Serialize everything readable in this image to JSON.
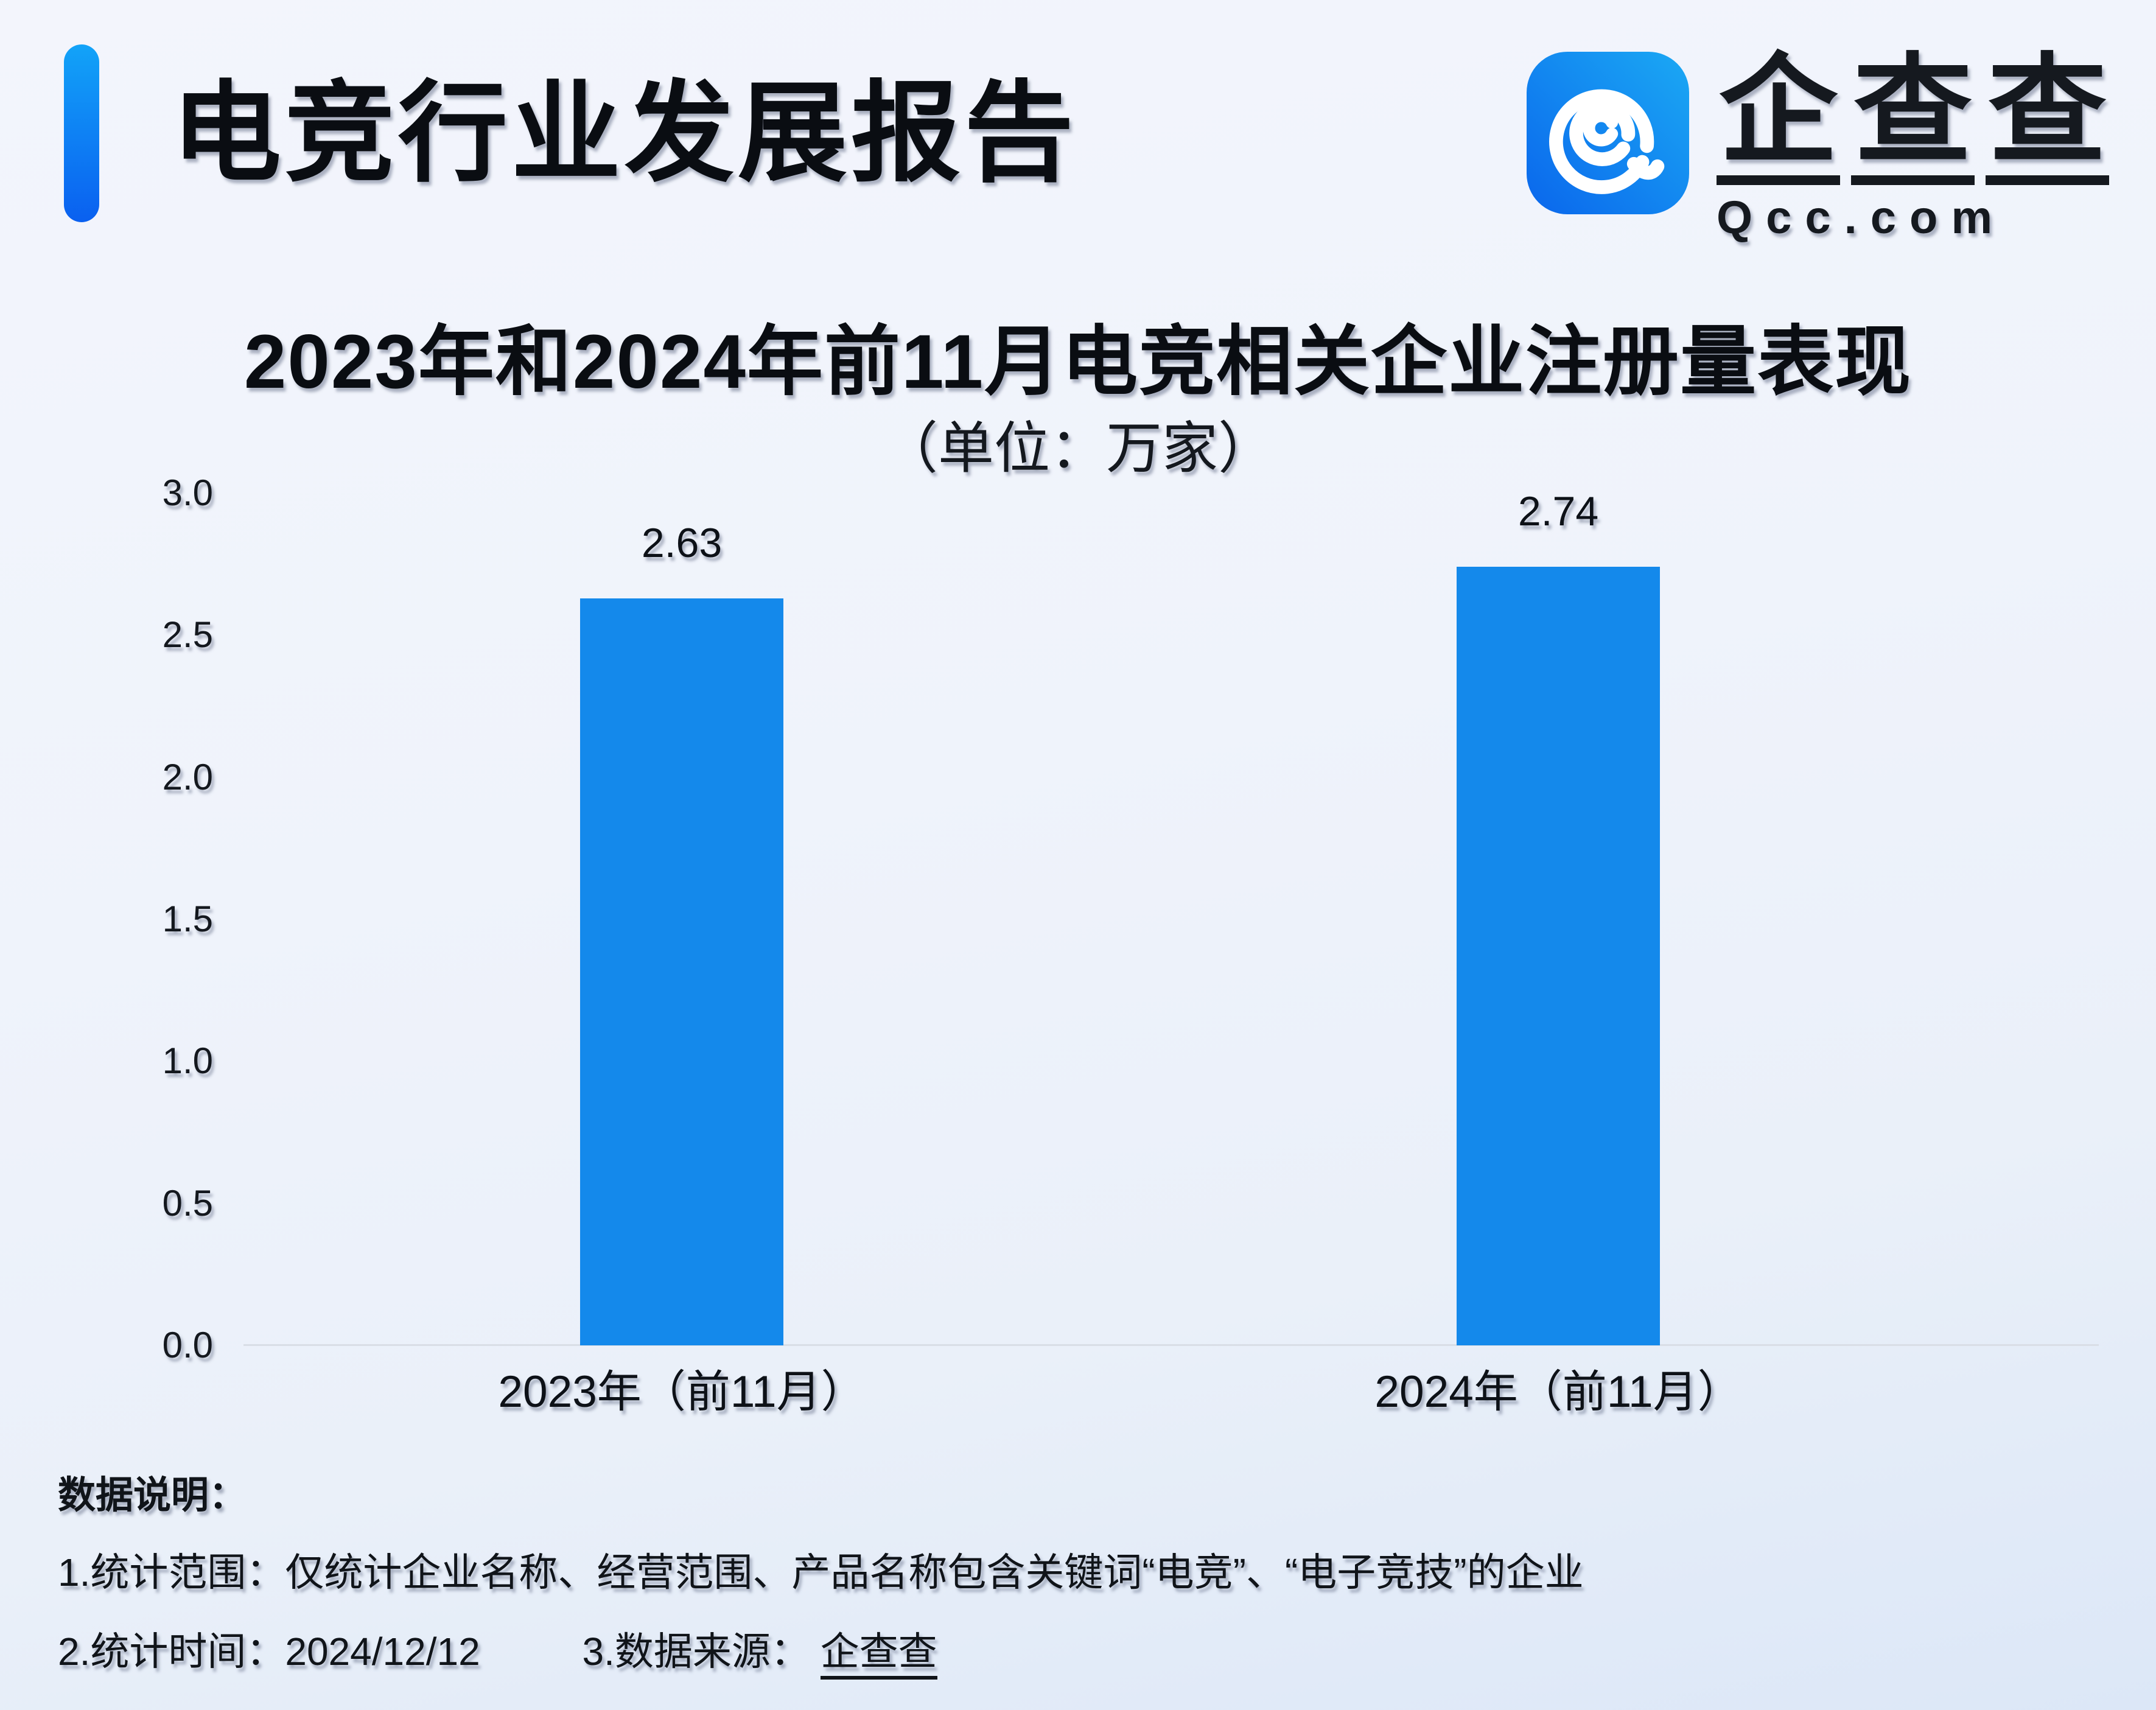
{
  "header": {
    "title": "电竞行业发展报告",
    "brand": {
      "chars": [
        "企",
        "查",
        "查"
      ],
      "domain": "Qcc.com"
    }
  },
  "chart_data": {
    "type": "bar",
    "title": "2023年和2024年前11月电竞相关企业注册量表现",
    "subtitle": "（单位：万家）",
    "unit": "万家",
    "categories": [
      "2023年（前11月）",
      "2024年（前11月）"
    ],
    "values": [
      2.63,
      2.74
    ],
    "ylim": [
      0,
      3.0
    ],
    "yticks": [
      0.0,
      0.5,
      1.0,
      1.5,
      2.0,
      2.5,
      3.0
    ],
    "grid": false,
    "legend": null,
    "bar_color": "#1489EB"
  },
  "footer": {
    "heading": "数据说明：",
    "note1": "1.统计范围：仅统计企业名称、经营范围、产品名称包含关键词“电竞”、“电子竞技”的企业",
    "note2_time": "2.统计时间：2024/12/12",
    "note2_source_label": "3.数据来源：",
    "note2_source": "企查查"
  },
  "colors": {
    "bar": "#1489EB",
    "accent_top": "#12A3F8",
    "accent_bottom": "#0A60F0",
    "logo_left": "#0A66EC",
    "logo_right": "#1BA9F4",
    "axis_line": "#D9DEE6",
    "background_top": "#F3F5FC",
    "background_bottom": "#DCE7F7"
  }
}
